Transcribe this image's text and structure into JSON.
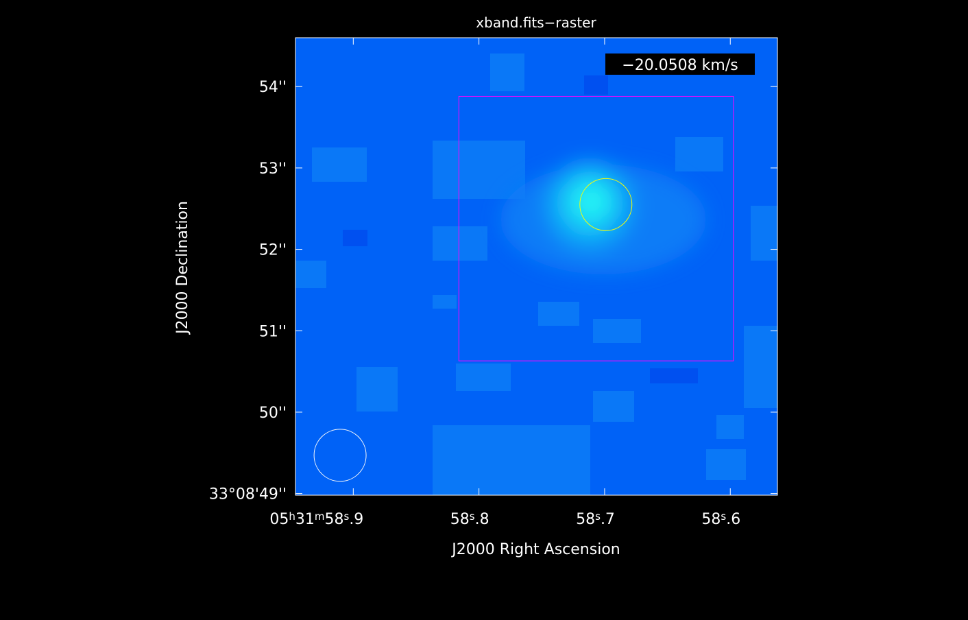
{
  "chart_data": {
    "type": "heatmap",
    "title": "xband.fits−raster",
    "xlabel": "J2000 Right Ascension",
    "ylabel": "J2000 Declination",
    "velocity_label": "−20.0508 km/s",
    "x_ticks": [
      {
        "ra_sec": 58.9,
        "label": "05h31m58s.9",
        "parts": [
          [
            "05",
            "base"
          ],
          [
            "h",
            "sup"
          ],
          [
            "31",
            "base"
          ],
          [
            "m",
            "sup"
          ],
          [
            "58",
            "base"
          ],
          [
            "s",
            "sup"
          ],
          [
            ".9",
            "base"
          ]
        ]
      },
      {
        "ra_sec": 58.8,
        "label": "58s.8",
        "parts": [
          [
            "58",
            "base"
          ],
          [
            "s",
            "sup"
          ],
          [
            ".8",
            "base"
          ]
        ]
      },
      {
        "ra_sec": 58.7,
        "label": "58s.7",
        "parts": [
          [
            "58",
            "base"
          ],
          [
            "s",
            "sup"
          ],
          [
            ".7",
            "base"
          ]
        ]
      },
      {
        "ra_sec": 58.6,
        "label": "58s.6",
        "parts": [
          [
            "58",
            "base"
          ],
          [
            "s",
            "sup"
          ],
          [
            ".6",
            "base"
          ]
        ]
      }
    ],
    "y_ticks": [
      {
        "dec_arcsec": 49,
        "label": "33°08'49''"
      },
      {
        "dec_arcsec": 50,
        "label": "50''"
      },
      {
        "dec_arcsec": 51,
        "label": "51''"
      },
      {
        "dec_arcsec": 52,
        "label": "52''"
      },
      {
        "dec_arcsec": 53,
        "label": "53''"
      },
      {
        "dec_arcsec": 54,
        "label": "54''"
      }
    ],
    "ra_range_sec": [
      58.946,
      58.5625
    ],
    "dec_range_arcsec": [
      48.98,
      54.6
    ],
    "source": {
      "ra_sec": 58.699,
      "dec_arcsec": 52.55,
      "peak_level": 1.0
    },
    "fit_ellipse": {
      "ra_sec": 58.699,
      "dec_arcsec": 52.55,
      "major_arcsec": 0.64,
      "minor_arcsec": 0.64
    },
    "beam": {
      "ra_sec": 58.9105,
      "dec_arcsec": 49.47,
      "diameter_arcsec": 0.64
    },
    "region_box": {
      "ra_min_sec": 58.5975,
      "ra_max_sec": 58.816,
      "dec_min_arcsec": 50.63,
      "dec_max_arcsec": 53.88
    },
    "colors": {
      "background": "#000000",
      "map_base": "#0062f7",
      "ring": "#fafafa",
      "fit_ellipse": "#ffff00",
      "region_box": "#ff00ff",
      "bright_colormap": "#00ffff"
    }
  }
}
